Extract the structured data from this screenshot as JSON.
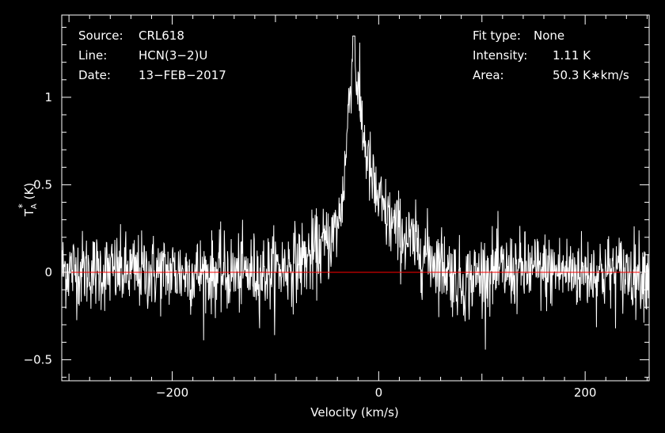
{
  "chart_data": {
    "type": "line",
    "title": "",
    "xlabel": "Velocity (km/s)",
    "ylabel_main": "T",
    "ylabel_sub": "A",
    "ylabel_sup": "*",
    "ylabel_unit": "(K)",
    "xlim": [
      -307,
      262
    ],
    "ylim": [
      -0.62,
      1.47
    ],
    "xticks": [
      -200,
      0,
      200
    ],
    "xtick_labels": [
      "−200",
      "0",
      "200"
    ],
    "yticks": [
      -0.5,
      0,
      0.5,
      1
    ],
    "ytick_labels": [
      "−0.5",
      "0",
      "0.5",
      "1"
    ],
    "baseline": 0,
    "noise_rms": 0.11,
    "peak_velocity": -24,
    "peak_value": 1.35,
    "profile_points": [
      [
        -307,
        0.02
      ],
      [
        -250,
        0.0
      ],
      [
        -200,
        0.0
      ],
      [
        -150,
        -0.01
      ],
      [
        -110,
        0.0
      ],
      [
        -90,
        0.03
      ],
      [
        -70,
        0.08
      ],
      [
        -55,
        0.14
      ],
      [
        -45,
        0.2
      ],
      [
        -38,
        0.3
      ],
      [
        -33,
        0.55
      ],
      [
        -29,
        0.95
      ],
      [
        -26,
        1.18
      ],
      [
        -24,
        1.22
      ],
      [
        -22,
        1.15
      ],
      [
        -19,
        0.98
      ],
      [
        -15,
        0.8
      ],
      [
        -10,
        0.62
      ],
      [
        -4,
        0.46
      ],
      [
        5,
        0.34
      ],
      [
        15,
        0.26
      ],
      [
        25,
        0.2
      ],
      [
        35,
        0.15
      ],
      [
        50,
        0.09
      ],
      [
        65,
        0.03
      ],
      [
        80,
        -0.06
      ],
      [
        90,
        -0.04
      ],
      [
        100,
        0.0
      ],
      [
        150,
        0.01
      ],
      [
        200,
        0.0
      ],
      [
        262,
        0.0
      ]
    ],
    "series": [
      {
        "color": "#ffffff"
      }
    ],
    "baseline_color": "#ff0000",
    "axis_color": "#ffffff",
    "grid": false,
    "legend": "none"
  },
  "info": {
    "source_label": "Source:",
    "source_value": "CRL618",
    "line_label": "Line:",
    "line_value": "HCN(3−2)U",
    "date_label": "Date:",
    "date_value": "13−FEB−2017",
    "fit_label": "Fit type:",
    "fit_value": "None",
    "intensity_label": "Intensity:",
    "intensity_value": "1.11 K",
    "area_label": "Area:",
    "area_value": "50.3 K∗km/s"
  }
}
